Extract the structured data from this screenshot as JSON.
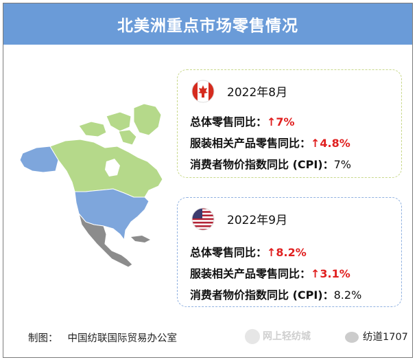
{
  "title": "北美洲重点市场零售情况",
  "canada": {
    "flag": "canada-flag-icon",
    "date": "2022年8月",
    "rows": [
      {
        "label": "总体零售同比：",
        "arrow": "↑",
        "value": "7%"
      },
      {
        "label": "服装相关产品零售同比：",
        "arrow": "↑",
        "value": "4.8%"
      },
      {
        "label": "消费者物价指数同比 (CPI)：",
        "value": "7%"
      }
    ]
  },
  "usa": {
    "flag": "usa-flag-icon",
    "date": "2022年9月",
    "rows": [
      {
        "label": "总体零售同比：",
        "arrow": "↑",
        "value": "8.2%"
      },
      {
        "label": "服装相关产品零售同比：",
        "arrow": "↑",
        "value": "3.1%"
      },
      {
        "label": "消费者物价指数同比 (CPI)：",
        "value": "8.2%"
      }
    ]
  },
  "footer": {
    "credit_prefix": "制图：",
    "credit_org": "中国纺联国际贸易办公室",
    "watermark_left": "网上轻纺城",
    "watermark_right": "纺道1707"
  },
  "colors": {
    "header": "#6a9bd8",
    "canada_map": "#b5d98a",
    "usa_map": "#7ea6dc",
    "mexico_map": "#8c8c8c",
    "greenland_map": "#b5d98a",
    "alaska_map": "#7ea6dc",
    "increase": "#e02020"
  }
}
